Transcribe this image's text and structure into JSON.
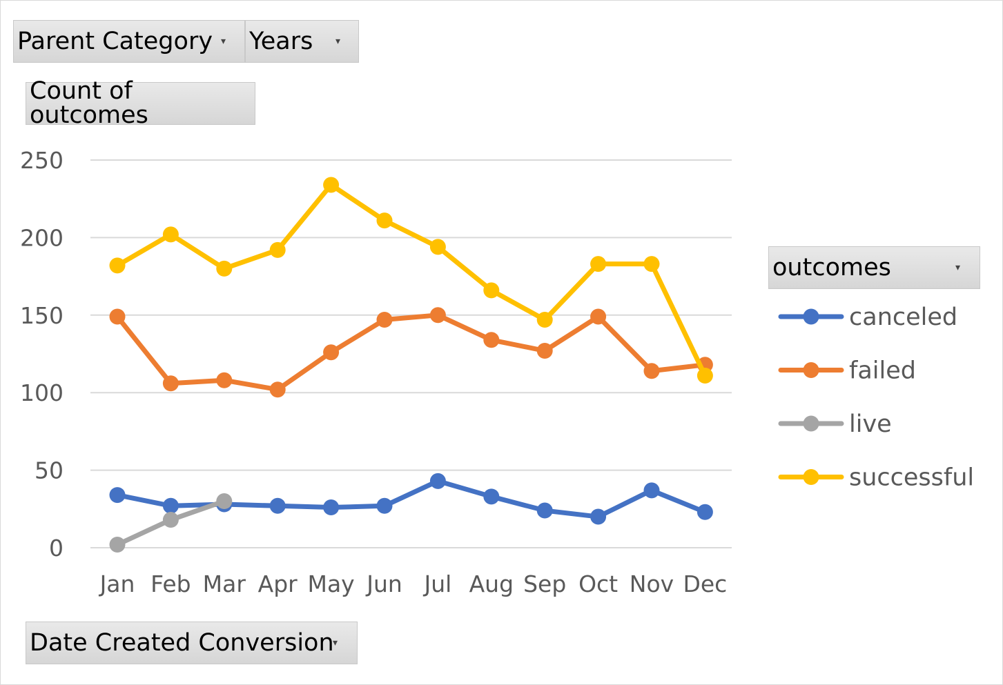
{
  "filters": {
    "parent_category": "Parent Category",
    "years": "Years",
    "values_field": "Count of outcomes",
    "axis_field": "Date Created Conversion",
    "legend_field": "outcomes"
  },
  "colors": {
    "canceled": "#4472c4",
    "failed": "#ed7d31",
    "live": "#a5a5a5",
    "successful": "#ffc000",
    "gridline": "#d9d9d9",
    "tick_text": "#595959"
  },
  "chart_data": {
    "type": "line",
    "categories": [
      "Jan",
      "Feb",
      "Mar",
      "Apr",
      "May",
      "Jun",
      "Jul",
      "Aug",
      "Sep",
      "Oct",
      "Nov",
      "Dec"
    ],
    "yticks": [
      "0",
      "50",
      "100",
      "150",
      "200",
      "250"
    ],
    "ylim": [
      0,
      250
    ],
    "grid": true,
    "legend_position": "right",
    "series": [
      {
        "name": "canceled",
        "values": [
          34,
          27,
          28,
          27,
          26,
          27,
          43,
          33,
          24,
          20,
          37,
          23
        ]
      },
      {
        "name": "failed",
        "values": [
          149,
          106,
          108,
          102,
          126,
          147,
          150,
          134,
          127,
          149,
          114,
          118
        ]
      },
      {
        "name": "live",
        "values": [
          2,
          18,
          30,
          null,
          null,
          null,
          null,
          null,
          null,
          null,
          null,
          null
        ]
      },
      {
        "name": "successful",
        "values": [
          182,
          202,
          180,
          192,
          234,
          211,
          194,
          166,
          147,
          183,
          183,
          111
        ]
      }
    ]
  }
}
